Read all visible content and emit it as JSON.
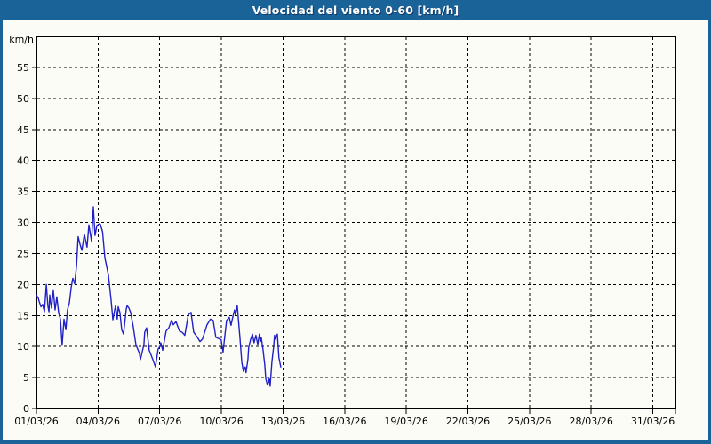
{
  "window": {
    "title": "Velocidad del viento 0-60 [km/h]"
  },
  "colors": {
    "titlebar": "#1a6399",
    "border": "#1a6399",
    "background": "#fcfcf6",
    "line": "#2020c8",
    "grid": "#000000",
    "frame": "#000000",
    "text": "#000000"
  },
  "chart_data": {
    "type": "line",
    "title": "Velocidad del viento 0-60 [km/h]",
    "xlabel": "",
    "ylabel": "km/h",
    "ylim": [
      0,
      60
    ],
    "y_tick_step": 5,
    "y_tick_max_labeled": 55,
    "xlim_days": [
      0,
      31.1
    ],
    "x_tick_days": [
      0,
      3,
      6,
      9,
      12,
      15,
      18,
      21,
      24,
      27,
      30
    ],
    "x_tick_labels": [
      "01/03/26",
      "04/03/26",
      "07/03/26",
      "10/03/26",
      "13/03/26",
      "16/03/26",
      "19/03/26",
      "22/03/26",
      "25/03/26",
      "28/03/26",
      "31/03/26"
    ],
    "grid": "dashed-both-axes",
    "legend": "none",
    "series": [
      {
        "name": "velocidad del viento",
        "unit": "km/h",
        "points_day_value": [
          [
            0.0,
            18.3
          ],
          [
            0.09,
            17.8
          ],
          [
            0.13,
            17.3
          ],
          [
            0.22,
            16.4
          ],
          [
            0.3,
            16.8
          ],
          [
            0.39,
            15.6
          ],
          [
            0.48,
            20.0
          ],
          [
            0.56,
            16.5
          ],
          [
            0.61,
            15.6
          ],
          [
            0.65,
            18.3
          ],
          [
            0.73,
            16.2
          ],
          [
            0.82,
            19.0
          ],
          [
            0.91,
            15.9
          ],
          [
            0.99,
            18.0
          ],
          [
            1.08,
            15.4
          ],
          [
            1.17,
            14.4
          ],
          [
            1.25,
            10.2
          ],
          [
            1.34,
            14.4
          ],
          [
            1.43,
            12.7
          ],
          [
            1.51,
            15.9
          ],
          [
            1.6,
            17.0
          ],
          [
            1.69,
            19.5
          ],
          [
            1.77,
            21.0
          ],
          [
            1.86,
            20.1
          ],
          [
            1.95,
            23.0
          ],
          [
            2.03,
            27.7
          ],
          [
            2.12,
            26.5
          ],
          [
            2.21,
            25.5
          ],
          [
            2.33,
            28.1
          ],
          [
            2.46,
            26.0
          ],
          [
            2.55,
            29.6
          ],
          [
            2.68,
            26.9
          ],
          [
            2.77,
            32.5
          ],
          [
            2.85,
            27.9
          ],
          [
            2.94,
            29.5
          ],
          [
            3.07,
            29.8
          ],
          [
            3.11,
            29.7
          ],
          [
            3.22,
            28.5
          ],
          [
            3.33,
            24.3
          ],
          [
            3.5,
            21.6
          ],
          [
            3.63,
            17.6
          ],
          [
            3.72,
            14.3
          ],
          [
            3.85,
            16.6
          ],
          [
            3.93,
            14.4
          ],
          [
            3.98,
            16.4
          ],
          [
            4.06,
            15.5
          ],
          [
            4.15,
            12.7
          ],
          [
            4.24,
            12.0
          ],
          [
            4.37,
            16.0
          ],
          [
            4.41,
            16.6
          ],
          [
            4.5,
            16.2
          ],
          [
            4.58,
            15.5
          ],
          [
            4.71,
            13.2
          ],
          [
            4.84,
            10.3
          ],
          [
            5.01,
            8.9
          ],
          [
            5.06,
            7.9
          ],
          [
            5.14,
            9.0
          ],
          [
            5.23,
            10.3
          ],
          [
            5.27,
            12.3
          ],
          [
            5.36,
            13.0
          ],
          [
            5.49,
            9.4
          ],
          [
            5.66,
            7.9
          ],
          [
            5.79,
            6.7
          ],
          [
            5.92,
            9.6
          ],
          [
            6.01,
            10.0
          ],
          [
            6.05,
            10.6
          ],
          [
            6.14,
            9.4
          ],
          [
            6.23,
            11.0
          ],
          [
            6.31,
            12.5
          ],
          [
            6.44,
            13.0
          ],
          [
            6.57,
            14.2
          ],
          [
            6.66,
            13.5
          ],
          [
            6.79,
            14.0
          ],
          [
            6.96,
            12.5
          ],
          [
            7.09,
            12.3
          ],
          [
            7.22,
            11.8
          ],
          [
            7.39,
            15.1
          ],
          [
            7.52,
            15.5
          ],
          [
            7.65,
            12.3
          ],
          [
            7.83,
            11.5
          ],
          [
            7.96,
            10.8
          ],
          [
            8.08,
            11.2
          ],
          [
            8.3,
            13.5
          ],
          [
            8.47,
            14.4
          ],
          [
            8.6,
            14.2
          ],
          [
            8.73,
            11.5
          ],
          [
            8.91,
            11.2
          ],
          [
            8.99,
            11.1
          ],
          [
            9.08,
            9.1
          ],
          [
            9.25,
            14.2
          ],
          [
            9.38,
            14.7
          ],
          [
            9.47,
            13.4
          ],
          [
            9.55,
            14.7
          ],
          [
            9.64,
            15.9
          ],
          [
            9.68,
            15.1
          ],
          [
            9.77,
            16.6
          ],
          [
            9.86,
            13.0
          ],
          [
            9.9,
            11.5
          ],
          [
            9.99,
            7.5
          ],
          [
            10.07,
            6.0
          ],
          [
            10.16,
            6.7
          ],
          [
            10.2,
            5.8
          ],
          [
            10.29,
            7.9
          ],
          [
            10.33,
            9.9
          ],
          [
            10.42,
            11.1
          ],
          [
            10.51,
            12.0
          ],
          [
            10.59,
            10.6
          ],
          [
            10.68,
            11.8
          ],
          [
            10.77,
            10.3
          ],
          [
            10.85,
            12.0
          ],
          [
            10.9,
            10.8
          ],
          [
            10.94,
            11.5
          ],
          [
            11.03,
            9.4
          ],
          [
            11.11,
            7.0
          ],
          [
            11.16,
            4.8
          ],
          [
            11.24,
            3.8
          ],
          [
            11.33,
            4.8
          ],
          [
            11.37,
            3.6
          ],
          [
            11.46,
            7.5
          ],
          [
            11.54,
            9.9
          ],
          [
            11.59,
            11.8
          ],
          [
            11.63,
            11.2
          ],
          [
            11.72,
            12.0
          ],
          [
            11.8,
            8.2
          ],
          [
            11.89,
            6.7
          ]
        ]
      }
    ]
  }
}
